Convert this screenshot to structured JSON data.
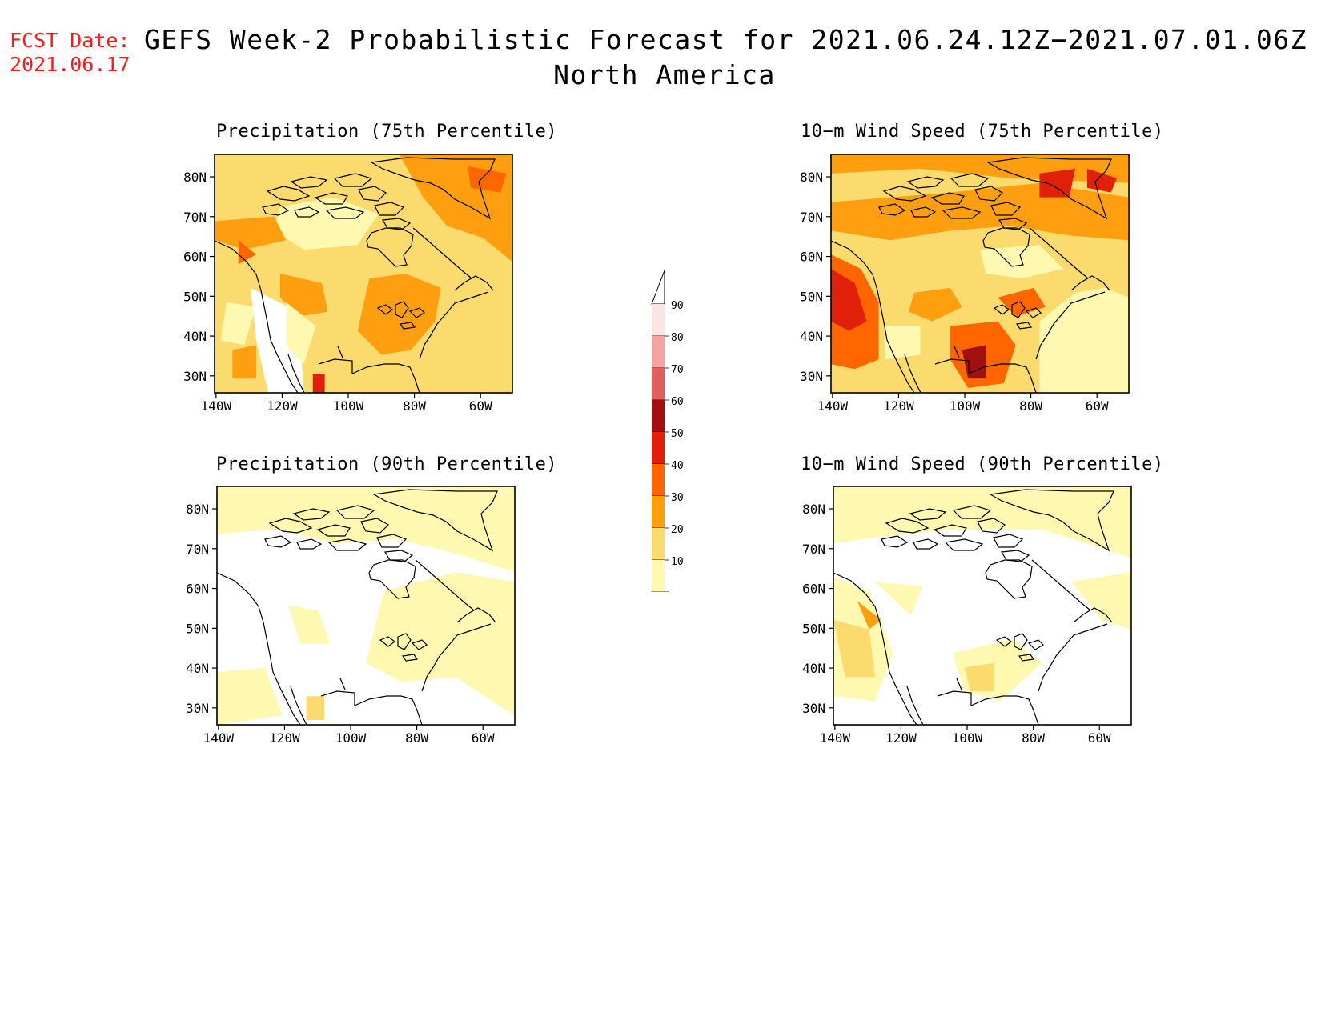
{
  "header": {
    "fcst_label": "FCST Date:",
    "fcst_date": "2021.06.17",
    "title": "GEFS Week-2 Probabilistic Forecast for 2021.06.24.12Z−2021.07.01.06Z",
    "subtitle": "North America"
  },
  "axes": {
    "lat_ticks": [
      "80N",
      "70N",
      "60N",
      "50N",
      "40N",
      "30N"
    ],
    "lon_ticks": [
      "140W",
      "120W",
      "100W",
      "80W",
      "60W"
    ]
  },
  "panels": [
    {
      "title": "Precipitation (75th Percentile)",
      "level": "moderate"
    },
    {
      "title": "10−m Wind Speed (75th Percentile)",
      "level": "high"
    },
    {
      "title": "Precipitation (90th Percentile)",
      "level": "low"
    },
    {
      "title": "10−m Wind Speed (90th Percentile)",
      "level": "low"
    }
  ],
  "colorbar": {
    "ticks": [
      "90",
      "80",
      "70",
      "60",
      "50",
      "40",
      "30",
      "20",
      "10"
    ],
    "colors": [
      "#fde4e4",
      "#f4a3a3",
      "#e06060",
      "#a01010",
      "#e02008",
      "#ff6600",
      "#ff9f10",
      "#fbdb6e",
      "#fff8b0"
    ]
  }
}
